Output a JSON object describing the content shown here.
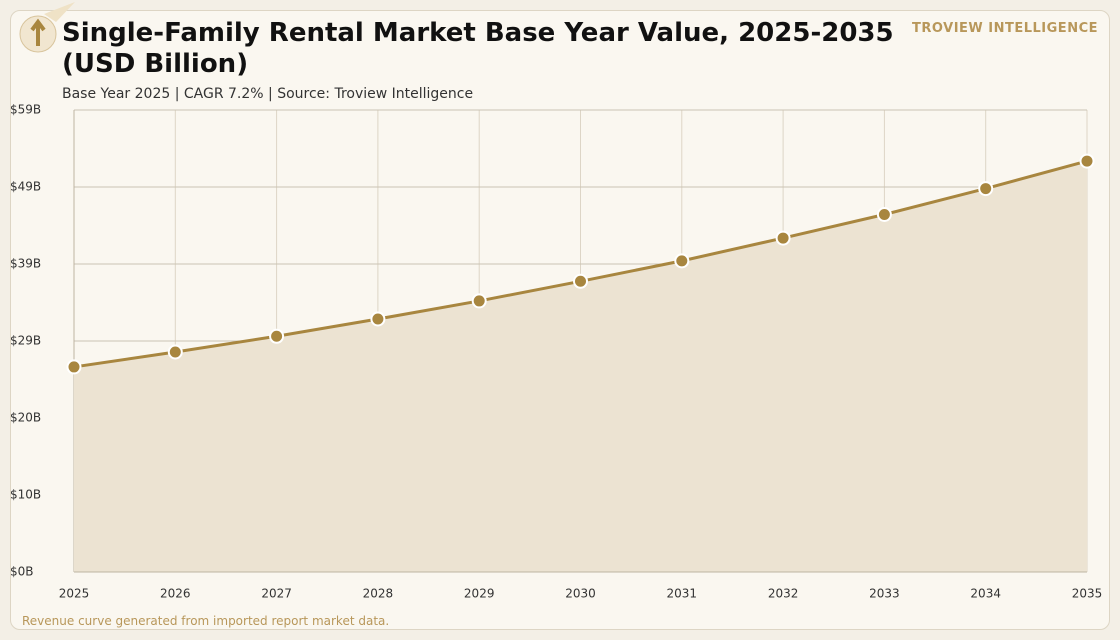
{
  "chart_data": {
    "type": "area-line",
    "title": "Single-Family Rental Market Base Year Value, 2025-2035 (USD Billion)",
    "subtitle": "Base Year 2025 | CAGR 7.2% | Source: Troview Intelligence",
    "brand": "TROVIEW INTELLIGENCE",
    "note": "Revenue curve generated from imported report market data.",
    "categories": [
      "2025",
      "2026",
      "2027",
      "2028",
      "2029",
      "2030",
      "2031",
      "2032",
      "2033",
      "2034",
      "2035"
    ],
    "values": [
      26.1,
      28.0,
      30.0,
      32.2,
      34.5,
      37.0,
      39.6,
      42.5,
      45.5,
      48.8,
      52.3
    ],
    "color": "#a8863f",
    "area_color": "#ece3d2",
    "ylim": [
      0,
      58.8
    ],
    "yticks": [
      {
        "value": 0,
        "label": "$0B"
      },
      {
        "value": 9.8,
        "label": "$10B"
      },
      {
        "value": 19.6,
        "label": "$20B"
      },
      {
        "value": 29.4,
        "label": "$29B"
      },
      {
        "value": 39.2,
        "label": "$39B"
      },
      {
        "value": 49,
        "label": "$49B"
      },
      {
        "value": 58.8,
        "label": "$59B"
      }
    ],
    "grid": true
  }
}
